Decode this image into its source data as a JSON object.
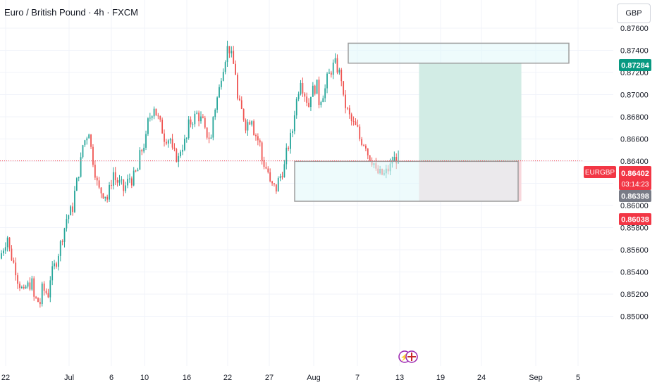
{
  "header": {
    "title": "Euro / British Pound · 4h · FXCM",
    "currency": "GBP"
  },
  "colors": {
    "up": "#26a69a",
    "down": "#ef5350",
    "zone_fill": "#e0f7fa",
    "zone_stroke": "#9e9e9e",
    "target_fill": "#d2ece5",
    "stop_fill": "#f8d7dc",
    "price_line": "#f23645",
    "grid": "#f0f3fa",
    "axis_text": "#131722"
  },
  "badges": {
    "top_zone": "0.87284",
    "symbol": "EURGBP",
    "last_price": "0.86402",
    "countdown": "03:14:23",
    "bottom_zone": "0.86398",
    "stop": "0.86038"
  },
  "chart_data": {
    "type": "candlestick",
    "title": "Euro / British Pound · 4h · FXCM",
    "ylim": [
      0.849,
      0.8762
    ],
    "yticks": [
      0.85,
      0.852,
      0.854,
      0.856,
      0.858,
      0.86,
      0.862,
      0.864,
      0.866,
      0.868,
      0.87,
      0.872,
      0.874,
      0.876
    ],
    "ytick_labels": [
      "0.85000",
      "0.85200",
      "0.85400",
      "0.85600",
      "0.85800",
      "0.86000",
      "0.86200",
      "0.86400",
      "0.86600",
      "0.86800",
      "0.87000",
      "0.87200",
      "0.87400",
      "0.87600"
    ],
    "xticks": [
      "22",
      "Jul",
      "6",
      "10",
      "16",
      "22",
      "27",
      "Aug",
      "7",
      "13",
      "19",
      "24",
      "Sep",
      "5"
    ],
    "grid": true,
    "price_path": [
      [
        0.8552,
        0.8572
      ],
      [
        0.8565,
        0.8542
      ],
      [
        0.8538,
        0.852
      ],
      [
        0.8525,
        0.853
      ],
      [
        0.8518,
        0.8512
      ],
      [
        0.8526,
        0.852
      ],
      [
        0.853,
        0.855
      ],
      [
        0.855,
        0.858
      ],
      [
        0.8585,
        0.8598
      ],
      [
        0.8602,
        0.864
      ],
      [
        0.865,
        0.8668
      ],
      [
        0.8662,
        0.862
      ],
      [
        0.8615,
        0.861
      ],
      [
        0.8598,
        0.863
      ],
      [
        0.8625,
        0.8618
      ],
      [
        0.861,
        0.8625
      ],
      [
        0.862,
        0.8632
      ],
      [
        0.864,
        0.866
      ],
      [
        0.867,
        0.869
      ],
      [
        0.8688,
        0.8668
      ],
      [
        0.8662,
        0.866
      ],
      [
        0.865,
        0.8642
      ],
      [
        0.8648,
        0.866
      ],
      [
        0.867,
        0.868
      ],
      [
        0.8685,
        0.8675
      ],
      [
        0.8668,
        0.866
      ],
      [
        0.8672,
        0.8705
      ],
      [
        0.871,
        0.8742
      ],
      [
        0.8748,
        0.872
      ],
      [
        0.87,
        0.868
      ],
      [
        0.867,
        0.868
      ],
      [
        0.8672,
        0.8655
      ],
      [
        0.8645,
        0.863
      ],
      [
        0.862,
        0.8615
      ],
      [
        0.8618,
        0.8635
      ],
      [
        0.864,
        0.8668
      ],
      [
        0.8675,
        0.8715
      ],
      [
        0.8712,
        0.869
      ],
      [
        0.87,
        0.8708
      ],
      [
        0.869,
        0.8705
      ],
      [
        0.871,
        0.8726
      ],
      [
        0.8732,
        0.8715
      ],
      [
        0.87,
        0.868
      ],
      [
        0.8678,
        0.8668
      ],
      [
        0.8662,
        0.8655
      ],
      [
        0.865,
        0.8638
      ],
      [
        0.863,
        0.8628
      ],
      [
        0.8625,
        0.8635
      ],
      [
        0.864,
        0.8643
      ]
    ],
    "annotations": {
      "upper_zone": {
        "start": "Aug 7",
        "end": "Sep 5",
        "low": 0.87284,
        "high": 0.87464
      },
      "lower_zone": {
        "start": "Jul 29",
        "end": "Aug 25",
        "low": 0.86038,
        "high": 0.86398
      },
      "long_position": {
        "start": "Aug 13",
        "end": "Aug 24",
        "entry": 0.86402,
        "target": 0.87284,
        "stop": 0.86038
      },
      "last_price": 0.86402
    }
  }
}
